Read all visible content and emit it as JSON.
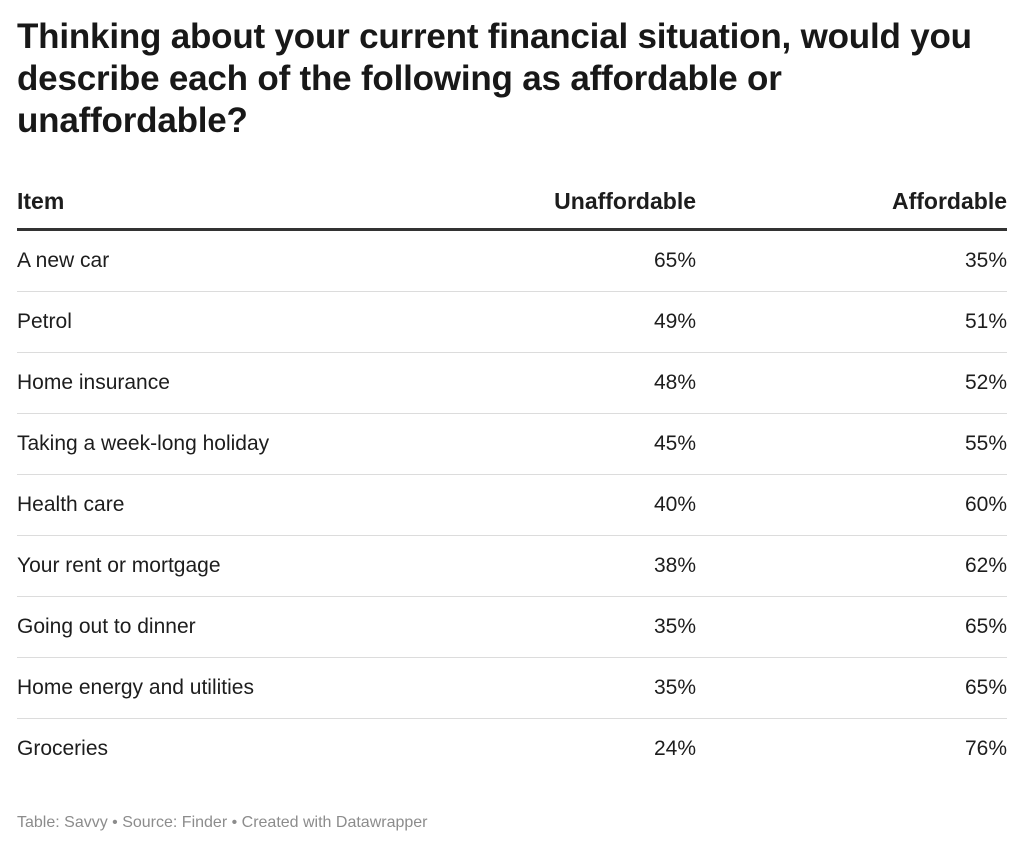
{
  "title": "Thinking about your current financial situation, would you describe each of the following as affordable or unaffordable?",
  "footer": "Table: Savvy • Source: Finder • Created with Datawrapper",
  "chart_data": {
    "type": "table",
    "title": "Thinking about your current financial situation, would you describe each of the following as affordable or unaffordable?",
    "columns": [
      "Item",
      "Unaffordable",
      "Affordable"
    ],
    "rows": [
      {
        "item": "A new car",
        "unaffordable": "65%",
        "affordable": "35%"
      },
      {
        "item": "Petrol",
        "unaffordable": "49%",
        "affordable": "51%"
      },
      {
        "item": "Home insurance",
        "unaffordable": "48%",
        "affordable": "52%"
      },
      {
        "item": "Taking a week-long holiday",
        "unaffordable": "45%",
        "affordable": "55%"
      },
      {
        "item": "Health care",
        "unaffordable": "40%",
        "affordable": "60%"
      },
      {
        "item": "Your rent or mortgage",
        "unaffordable": "38%",
        "affordable": "62%"
      },
      {
        "item": "Going out to dinner",
        "unaffordable": "35%",
        "affordable": "65%"
      },
      {
        "item": "Home energy and utilities",
        "unaffordable": "35%",
        "affordable": "65%"
      },
      {
        "item": "Groceries",
        "unaffordable": "24%",
        "affordable": "76%"
      }
    ],
    "source": "Table: Savvy • Source: Finder • Created with Datawrapper"
  }
}
